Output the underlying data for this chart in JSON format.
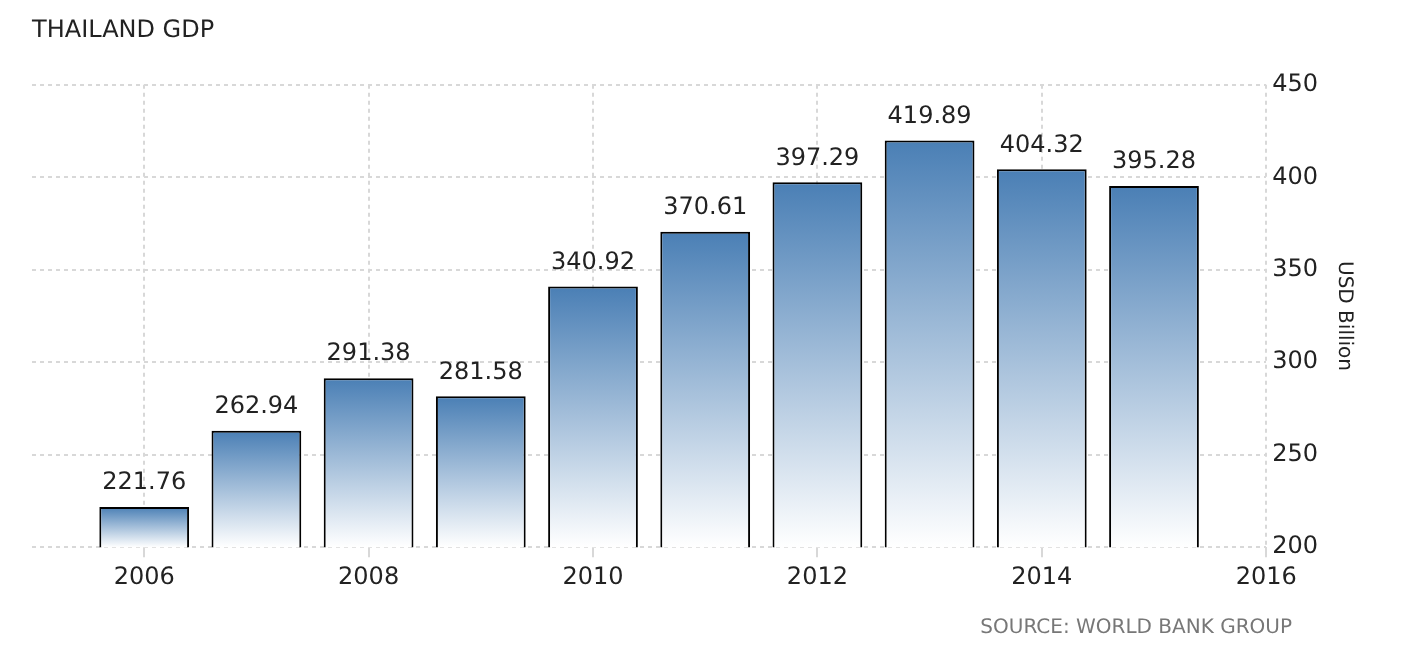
{
  "chart_data": {
    "type": "bar",
    "title": "THAILAND GDP",
    "ylabel": "USD Billion",
    "x": [
      2006,
      2007,
      2008,
      2009,
      2010,
      2011,
      2012,
      2013,
      2014,
      2015
    ],
    "values": [
      221.76,
      262.94,
      291.38,
      281.58,
      340.92,
      370.61,
      397.29,
      419.89,
      404.32,
      395.28
    ],
    "color": "#4a7fb5",
    "data_labels": true,
    "xlim": [
      2005,
      2016
    ],
    "xticks": [
      2006,
      2008,
      2010,
      2012,
      2014,
      2016
    ],
    "ylim": [
      200,
      450
    ],
    "yticks": [
      200,
      250,
      300,
      350,
      400,
      450
    ],
    "grid": true,
    "legend": false,
    "annotations": [
      "SOURCE: WORLD BANK GROUP"
    ]
  }
}
